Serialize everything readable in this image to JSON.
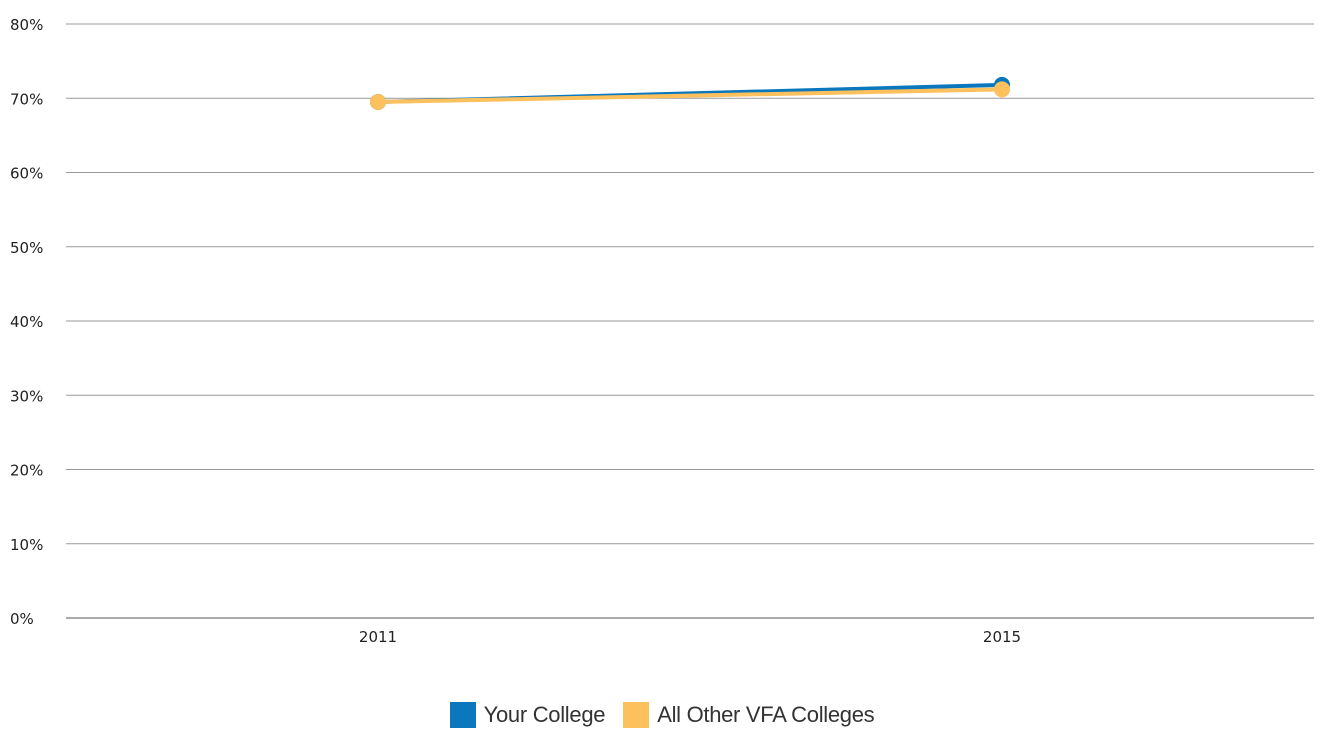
{
  "chart_data": {
    "type": "line",
    "categories": [
      "2011",
      "2015"
    ],
    "series": [
      {
        "name": "Your College",
        "values": [
          69.5,
          71.8
        ],
        "color": "#0b77bd"
      },
      {
        "name": "All Other VFA Colleges",
        "values": [
          69.5,
          71.2
        ],
        "color": "#fcc05c"
      }
    ],
    "ylim": [
      0,
      80
    ],
    "yticks": [
      0,
      10,
      20,
      30,
      40,
      50,
      60,
      70,
      80
    ],
    "ytick_labels": [
      "0%",
      "10%",
      "20%",
      "30%",
      "40%",
      "50%",
      "60%",
      "70%",
      "80%"
    ],
    "grid": true,
    "legend_position": "bottom-center",
    "title": "",
    "xlabel": "",
    "ylabel": ""
  }
}
